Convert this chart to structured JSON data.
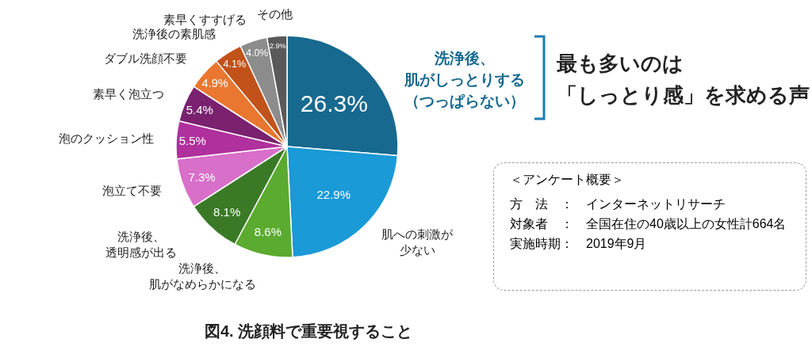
{
  "chart_data": {
    "type": "pie",
    "title": "図4. 洗顔料で重要視すること",
    "categories": [
      "洗浄後、肌がしっとりする（つっぱらない）",
      "肌への刺激が少ない",
      "洗浄後、肌がなめらかになる",
      "洗浄後、透明感が出る",
      "泡立て不要",
      "泡のクッション性",
      "素早く泡立つ",
      "ダブル洗顔不要",
      "洗浄後の素肌感",
      "素早くすすげる",
      "その他"
    ],
    "values": [
      26.3,
      22.9,
      8.6,
      8.1,
      7.3,
      5.5,
      5.4,
      4.9,
      4.1,
      4.0,
      2.9
    ],
    "value_labels": [
      "26.3%",
      "22.9%",
      "8.6%",
      "8.1%",
      "7.3%",
      "5.5%",
      "5.4%",
      "4.9%",
      "4.1%",
      "4.0%",
      "2.9%"
    ],
    "colors": [
      "#17698f",
      "#1a9ad6",
      "#5aab2f",
      "#3a7a27",
      "#d86fc9",
      "#b0309d",
      "#7a2170",
      "#e9772f",
      "#c1521a",
      "#8c8c8c",
      "#595959"
    ],
    "legend": false,
    "annotations": [
      "最も多いのは「しっとり感」を求める声",
      "＜アンケート概要＞",
      "方　法　：　インターネットリサーチ",
      "対象者　：　全国在住の40歳以上の女性計664名",
      "実施時期：　2019年9月"
    ]
  }
}
